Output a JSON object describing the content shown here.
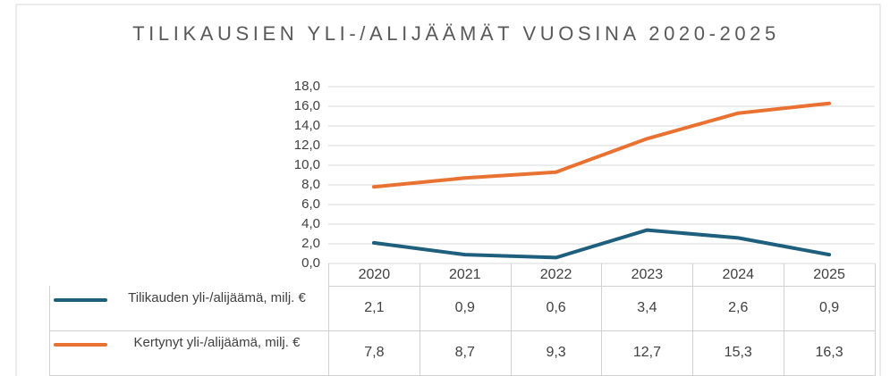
{
  "chart_data": {
    "type": "line",
    "title": "TILIKAUSIEN YLI-/ALIJÄÄMÄT VUOSINA 2020-2025",
    "categories": [
      "2020",
      "2021",
      "2022",
      "2023",
      "2024",
      "2025"
    ],
    "series": [
      {
        "name": "Tilikauden yli-/alijäämä, milj. €",
        "color": "#1f5f7e",
        "values": [
          2.1,
          0.9,
          0.6,
          3.4,
          2.6,
          0.9
        ],
        "value_labels": [
          "2,1",
          "0,9",
          "0,6",
          "3,4",
          "2,6",
          "0,9"
        ]
      },
      {
        "name": "Kertynyt yli-/alijäämä, milj. €",
        "color": "#e97132",
        "values": [
          7.8,
          8.7,
          9.3,
          12.7,
          15.3,
          16.3
        ],
        "value_labels": [
          "7,8",
          "8,7",
          "9,3",
          "12,7",
          "15,3",
          "16,3"
        ]
      }
    ],
    "ylim": [
      0,
      18
    ],
    "yticks": [
      {
        "value": 0,
        "label": "0,0"
      },
      {
        "value": 2,
        "label": "2,0"
      },
      {
        "value": 4,
        "label": "4,0"
      },
      {
        "value": 6,
        "label": "6,0"
      },
      {
        "value": 8,
        "label": "8,0"
      },
      {
        "value": 10,
        "label": "10,0"
      },
      {
        "value": 12,
        "label": "12,0"
      },
      {
        "value": 14,
        "label": "14,0"
      },
      {
        "value": 16,
        "label": "16,0"
      },
      {
        "value": 18,
        "label": "18,0"
      }
    ],
    "grid": true,
    "data_table": true
  }
}
